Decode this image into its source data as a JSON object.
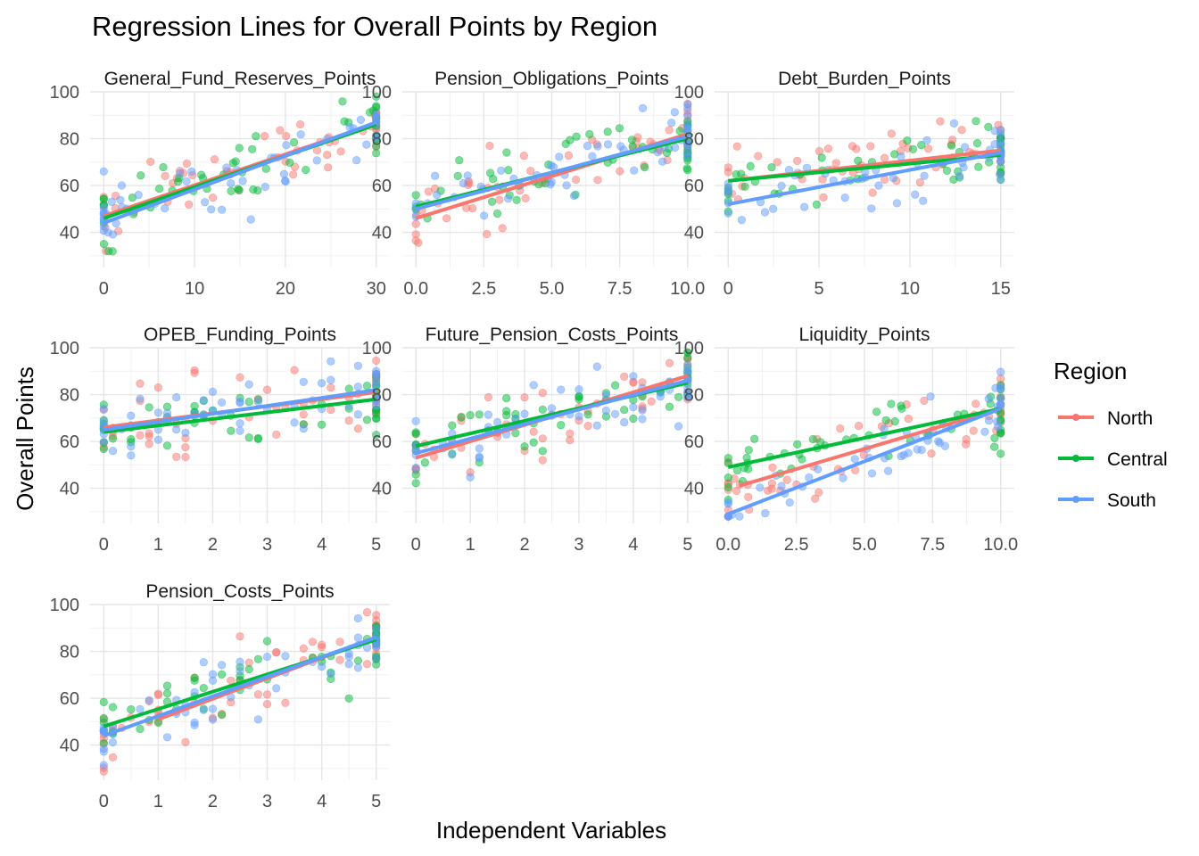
{
  "chart_data": {
    "type": "scatter",
    "title": "Regression Lines for Overall Points by Region",
    "xlabel": "Independent Variables",
    "ylabel": "Overall Points",
    "grid": true,
    "legend": {
      "title": "Region",
      "placement": "right",
      "entries": [
        {
          "name": "North",
          "color": "#F8766D"
        },
        {
          "name": "Central",
          "color": "#00BA38"
        },
        {
          "name": "South",
          "color": "#619CFF"
        }
      ]
    },
    "ylim": [
      25,
      100
    ],
    "y_ticks": [
      "40",
      "60",
      "80",
      "100"
    ],
    "y_tick_values": [
      40,
      60,
      80,
      100
    ],
    "panels": [
      {
        "name": "General_Fund_Reserves_Points",
        "xlim": [
          -1.5,
          31.5
        ],
        "x_ticks": [
          "0",
          "10",
          "20",
          "30"
        ],
        "x_tick_values": [
          0,
          10,
          20,
          30
        ],
        "x_range": [
          0,
          30
        ],
        "regression": [
          {
            "series": "North",
            "x": [
              0,
              30
            ],
            "y": [
              47.0,
              86.5
            ]
          },
          {
            "series": "Central",
            "x": [
              0,
              30
            ],
            "y": [
              46.0,
              86.0
            ]
          },
          {
            "series": "South",
            "x": [
              0,
              30
            ],
            "y": [
              44.0,
              87.0
            ]
          }
        ]
      },
      {
        "name": "Pension_Obligations_Points",
        "xlim": [
          -0.5,
          10.5
        ],
        "x_ticks": [
          "0.0",
          "2.5",
          "5.0",
          "7.5",
          "10.0"
        ],
        "x_tick_values": [
          0,
          2.5,
          5,
          7.5,
          10
        ],
        "x_range": [
          0,
          10
        ],
        "regression": [
          {
            "series": "North",
            "x": [
              0,
              10
            ],
            "y": [
              46.0,
              82.0
            ]
          },
          {
            "series": "Central",
            "x": [
              0,
              10
            ],
            "y": [
              51.0,
              80.0
            ]
          },
          {
            "series": "South",
            "x": [
              0,
              10
            ],
            "y": [
              50.0,
              81.0
            ]
          }
        ]
      },
      {
        "name": "Debt_Burden_Points",
        "xlim": [
          -0.75,
          15.75
        ],
        "x_ticks": [
          "0",
          "5",
          "10",
          "15"
        ],
        "x_tick_values": [
          0,
          5,
          10,
          15
        ],
        "x_range": [
          0,
          15
        ],
        "regression": [
          {
            "series": "North",
            "x": [
              0,
              15
            ],
            "y": [
              62.0,
              75.0
            ]
          },
          {
            "series": "Central",
            "x": [
              0,
              15
            ],
            "y": [
              62.0,
              73.0
            ]
          },
          {
            "series": "South",
            "x": [
              0,
              15
            ],
            "y": [
              52.0,
              74.0
            ]
          }
        ]
      },
      {
        "name": "OPEB_Funding_Points",
        "xlim": [
          -0.25,
          5.25
        ],
        "x_ticks": [
          "0",
          "1",
          "2",
          "3",
          "4",
          "5"
        ],
        "x_tick_values": [
          0,
          1,
          2,
          3,
          4,
          5
        ],
        "x_range": [
          0,
          5
        ],
        "regression": [
          {
            "series": "North",
            "x": [
              0,
              5
            ],
            "y": [
              66.0,
              81.0
            ]
          },
          {
            "series": "Central",
            "x": [
              0,
              5
            ],
            "y": [
              64.0,
              78.0
            ]
          },
          {
            "series": "South",
            "x": [
              0,
              5
            ],
            "y": [
              65.0,
              82.0
            ]
          }
        ]
      },
      {
        "name": "Future_Pension_Costs_Points",
        "xlim": [
          -0.25,
          5.25
        ],
        "x_ticks": [
          "0",
          "1",
          "2",
          "3",
          "4",
          "5"
        ],
        "x_tick_values": [
          0,
          1,
          2,
          3,
          4,
          5
        ],
        "x_range": [
          0,
          5
        ],
        "regression": [
          {
            "series": "North",
            "x": [
              0,
              5
            ],
            "y": [
              53.0,
              88.0
            ]
          },
          {
            "series": "Central",
            "x": [
              0,
              5
            ],
            "y": [
              58.0,
              85.0
            ]
          },
          {
            "series": "South",
            "x": [
              0,
              5
            ],
            "y": [
              55.0,
              86.0
            ]
          }
        ]
      },
      {
        "name": "Liquidity_Points",
        "xlim": [
          -0.5,
          10.5
        ],
        "x_ticks": [
          "0.0",
          "2.5",
          "5.0",
          "7.5",
          "10.0"
        ],
        "x_tick_values": [
          0,
          2.5,
          5,
          7.5,
          10
        ],
        "x_range": [
          0,
          10
        ],
        "regression": [
          {
            "series": "North",
            "x": [
              0.4,
              10
            ],
            "y": [
              41.0,
              74.0
            ]
          },
          {
            "series": "Central",
            "x": [
              0,
              10
            ],
            "y": [
              49.0,
              74.0
            ]
          },
          {
            "series": "South",
            "x": [
              0,
              10
            ],
            "y": [
              29.0,
              74.0
            ]
          }
        ]
      },
      {
        "name": "Pension_Costs_Points",
        "xlim": [
          -0.25,
          5.25
        ],
        "x_ticks": [
          "0",
          "1",
          "2",
          "3",
          "4",
          "5"
        ],
        "x_tick_values": [
          0,
          1,
          2,
          3,
          4,
          5
        ],
        "x_range": [
          0,
          5
        ],
        "regression": [
          {
            "series": "North",
            "x": [
              1,
              5
            ],
            "y": [
              51.0,
              86.0
            ]
          },
          {
            "series": "Central",
            "x": [
              0,
              5
            ],
            "y": [
              48.0,
              85.0
            ]
          },
          {
            "series": "South",
            "x": [
              0,
              5
            ],
            "y": [
              44.0,
              86.0
            ]
          }
        ]
      }
    ]
  }
}
